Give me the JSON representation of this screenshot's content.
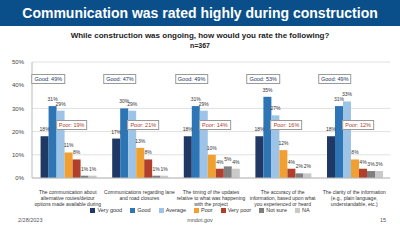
{
  "title": "Communication was rated highly during construction",
  "chart_data": {
    "type": "bar",
    "title": "While construction was ongoing, how would you rate the following?",
    "subtitle": "n=367",
    "categories": [
      "The communication about alternative routes/detour options made available during the project",
      "Communications regarding lane and road closures",
      "The timing of the updates relative to what was happening with the project",
      "The accuracy of the information, based upon what you experienced or heard",
      "The clarity of the information (e.g., plain language, understandable, etc.)"
    ],
    "series": [
      {
        "name": "Very good",
        "color": "#1f3864",
        "values": [
          18,
          17,
          18,
          18,
          18
        ],
        "value_labels": [
          "18%",
          "17%",
          "18%",
          "18%",
          "18%"
        ]
      },
      {
        "name": "Good",
        "color": "#2e75b6",
        "values": [
          31,
          30,
          31,
          35,
          31
        ],
        "value_labels": [
          "31%",
          "30%",
          "31%",
          "35%",
          "31%"
        ]
      },
      {
        "name": "Average",
        "color": "#9dc3e6",
        "values": [
          29,
          29,
          29,
          27,
          33
        ],
        "value_labels": [
          "29%",
          "29%",
          "29%",
          "27%",
          "33%"
        ]
      },
      {
        "name": "Poor",
        "color": "#f0a030",
        "values": [
          11,
          13,
          10,
          12,
          8
        ],
        "value_labels": [
          "11%",
          "13%",
          "10%",
          "12%",
          "8%"
        ]
      },
      {
        "name": "Very poor",
        "color": "#b0402c",
        "values": [
          8,
          8,
          4,
          4,
          4
        ],
        "value_labels": [
          "8%",
          "8%",
          "4%",
          "4%",
          "4%"
        ]
      },
      {
        "name": "Not sure",
        "color": "#7f7f7f",
        "values": [
          1,
          1,
          5,
          2,
          3
        ],
        "value_labels": [
          "1%",
          "1%",
          "5%",
          "2%",
          "3%"
        ]
      },
      {
        "name": "NA",
        "color": "#c9c9c9",
        "values": [
          1,
          1,
          4,
          2,
          3
        ],
        "value_labels": [
          "1%",
          "1%",
          "4%",
          "2%",
          "3%"
        ]
      }
    ],
    "ylim": [
      0,
      50
    ],
    "yticks": [
      {
        "value": 0,
        "label": "0%"
      },
      {
        "value": 10,
        "label": "10%"
      },
      {
        "value": 20,
        "label": "20%"
      },
      {
        "value": 30,
        "label": "30%"
      },
      {
        "value": 40,
        "label": "40%"
      },
      {
        "value": 50,
        "label": "50%"
      }
    ],
    "grid": true,
    "legend": "bottom",
    "data_labels": true,
    "callouts": [
      {
        "category": "The communication about alternative routes/detour options made available during the project",
        "texts": [
          "Good: 49%",
          "Poor: 19%"
        ]
      },
      {
        "category": "Communications regarding lane and road closures",
        "texts": [
          "Good: 47%",
          "Poor: 21%"
        ]
      },
      {
        "category": "The timing of the updates relative to what was happening with the project",
        "texts": [
          "Good: 49%",
          "Poor: 14%"
        ]
      },
      {
        "category": "The accuracy of the information, based upon what you experienced or heard",
        "texts": [
          "Good: 53%",
          "Poor: 16%"
        ]
      },
      {
        "category": "The clarity of the information (e.g., plain language, understandable, etc.)",
        "texts": [
          "Good: 49%",
          "Poor: 12%"
        ]
      }
    ]
  },
  "footer": {
    "date": "2/28/2023",
    "site": "mndot.gov",
    "page": "15"
  }
}
